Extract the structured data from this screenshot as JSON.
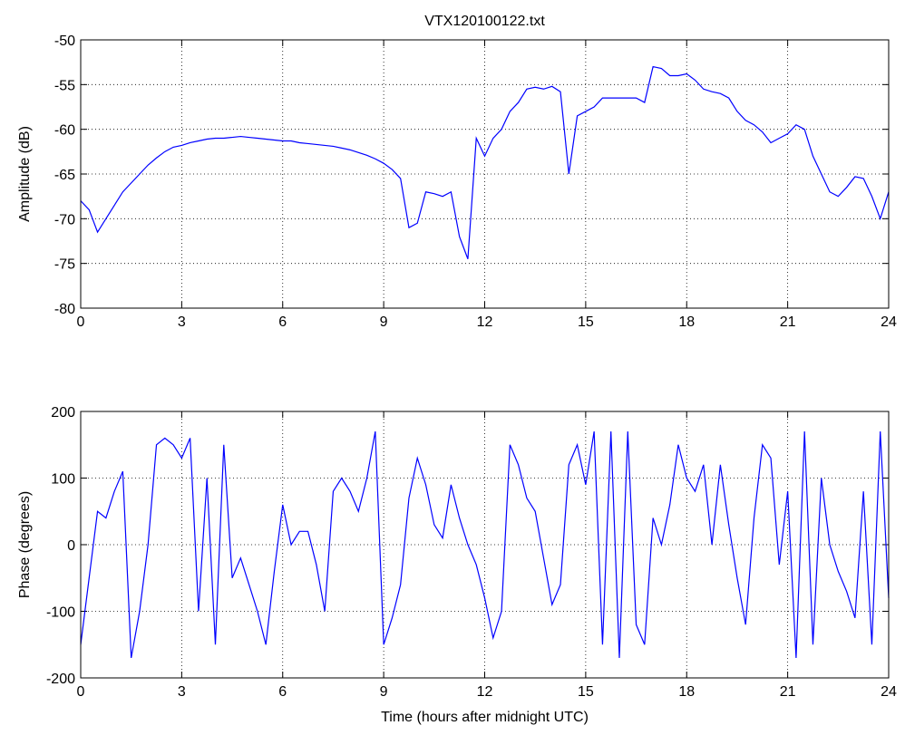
{
  "chart_data": [
    {
      "type": "line",
      "title": "VTX120100122.txt",
      "ylabel": "Amplitude (dB)",
      "color": "#0000ff",
      "grid": true,
      "xlim": [
        0,
        24
      ],
      "xticks": [
        0,
        3,
        6,
        9,
        12,
        15,
        18,
        21,
        24
      ],
      "ylim": [
        -80,
        -50
      ],
      "yticks": [
        -80,
        -75,
        -70,
        -65,
        -60,
        -55,
        -50
      ],
      "x": [
        0,
        0.25,
        0.5,
        0.75,
        1,
        1.25,
        1.5,
        1.75,
        2,
        2.25,
        2.5,
        2.75,
        3,
        3.25,
        3.5,
        3.75,
        4,
        4.25,
        4.5,
        4.75,
        5,
        5.25,
        5.5,
        5.75,
        6,
        6.25,
        6.5,
        6.75,
        7,
        7.25,
        7.5,
        7.75,
        8,
        8.25,
        8.5,
        8.75,
        9,
        9.25,
        9.5,
        9.75,
        10,
        10.25,
        10.5,
        10.75,
        11,
        11.25,
        11.5,
        11.75,
        12,
        12.25,
        12.5,
        12.75,
        13,
        13.25,
        13.5,
        13.75,
        14,
        14.25,
        14.5,
        14.75,
        15,
        15.25,
        15.5,
        15.75,
        16,
        16.25,
        16.5,
        16.75,
        17,
        17.25,
        17.5,
        17.75,
        18,
        18.25,
        18.5,
        18.75,
        19,
        19.25,
        19.5,
        19.75,
        20,
        20.25,
        20.5,
        20.75,
        21,
        21.25,
        21.5,
        21.75,
        22,
        22.25,
        22.5,
        22.75,
        23,
        23.25,
        23.5,
        23.75,
        24
      ],
      "values": [
        -68,
        -69,
        -71.5,
        -70,
        -68.5,
        -67,
        -66,
        -65,
        -64,
        -63.2,
        -62.5,
        -62,
        -61.8,
        -61.5,
        -61.3,
        -61.1,
        -61,
        -61,
        -60.9,
        -60.8,
        -60.9,
        -61,
        -61.1,
        -61.2,
        -61.3,
        -61.3,
        -61.5,
        -61.6,
        -61.7,
        -61.8,
        -61.9,
        -62.1,
        -62.3,
        -62.6,
        -62.9,
        -63.3,
        -63.8,
        -64.5,
        -65.5,
        -71,
        -70.5,
        -67,
        -67.2,
        -67.5,
        -67,
        -72,
        -74.5,
        -61,
        -63,
        -61,
        -60,
        -58,
        -57,
        -55.5,
        -55.3,
        -55.5,
        -55.2,
        -55.8,
        -65,
        -58.5,
        -58,
        -57.5,
        -56.5,
        -56.5,
        -56.5,
        -56.5,
        -56.5,
        -57,
        -53,
        -53.2,
        -54,
        -54,
        -53.8,
        -54.5,
        -55.5,
        -55.8,
        -56,
        -56.5,
        -58,
        -59,
        -59.5,
        -60.3,
        -61.5,
        -61,
        -60.5,
        -59.5,
        -60,
        -63,
        -65,
        -67,
        -67.5,
        -66.5,
        -65.3,
        -65.5,
        -67.5,
        -70,
        -67
      ]
    },
    {
      "type": "line",
      "ylabel": "Phase (degrees)",
      "xlabel": "Time (hours after midnight UTC)",
      "color": "#0000ff",
      "grid": true,
      "xlim": [
        0,
        24
      ],
      "xticks": [
        0,
        3,
        6,
        9,
        12,
        15,
        18,
        21,
        24
      ],
      "ylim": [
        -200,
        200
      ],
      "yticks": [
        -200,
        -100,
        0,
        100,
        200
      ],
      "x": [
        0,
        0.25,
        0.5,
        0.75,
        1,
        1.25,
        1.5,
        1.75,
        2,
        2.25,
        2.5,
        2.75,
        3,
        3.25,
        3.5,
        3.75,
        4,
        4.25,
        4.5,
        4.75,
        5,
        5.25,
        5.5,
        5.75,
        6,
        6.25,
        6.5,
        6.75,
        7,
        7.25,
        7.5,
        7.75,
        8,
        8.25,
        8.5,
        8.75,
        9,
        9.25,
        9.5,
        9.75,
        10,
        10.25,
        10.5,
        10.75,
        11,
        11.25,
        11.5,
        11.75,
        12,
        12.25,
        12.5,
        12.75,
        13,
        13.25,
        13.5,
        13.75,
        14,
        14.25,
        14.5,
        14.75,
        15,
        15.25,
        15.5,
        15.75,
        16,
        16.25,
        16.5,
        16.75,
        17,
        17.25,
        17.5,
        17.75,
        18,
        18.25,
        18.5,
        18.75,
        19,
        19.25,
        19.5,
        19.75,
        20,
        20.25,
        20.5,
        20.75,
        21,
        21.25,
        21.5,
        21.75,
        22,
        22.25,
        22.5,
        22.75,
        23,
        23.25,
        23.5,
        23.75,
        24
      ],
      "values": [
        -150,
        -50,
        50,
        40,
        80,
        110,
        -170,
        -100,
        0,
        150,
        160,
        150,
        130,
        160,
        -100,
        100,
        -150,
        150,
        -50,
        -20,
        -60,
        -100,
        -150,
        -40,
        60,
        0,
        20,
        20,
        -30,
        -100,
        80,
        100,
        80,
        50,
        100,
        170,
        -150,
        -110,
        -60,
        70,
        130,
        90,
        30,
        10,
        90,
        40,
        0,
        -30,
        -80,
        -140,
        -100,
        150,
        120,
        70,
        50,
        -20,
        -90,
        -60,
        120,
        150,
        90,
        170,
        -150,
        170,
        -170,
        170,
        -120,
        -150,
        40,
        0,
        60,
        150,
        100,
        80,
        120,
        0,
        120,
        30,
        -50,
        -120,
        40,
        150,
        130,
        -30,
        80,
        -170,
        170,
        -150,
        100,
        0,
        -40,
        -70,
        -110,
        80,
        -150,
        170,
        -80
      ]
    }
  ]
}
